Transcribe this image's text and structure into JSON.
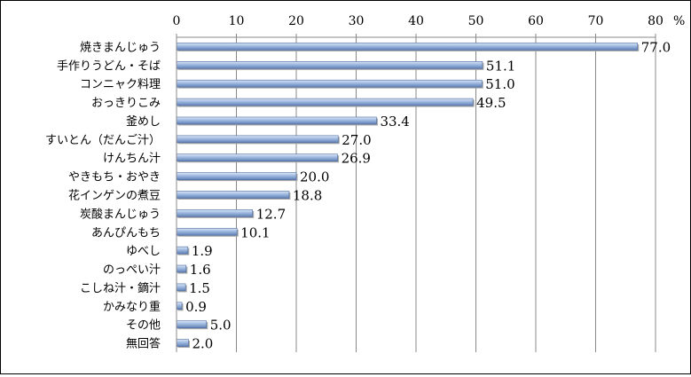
{
  "chart_data": {
    "type": "bar",
    "orientation": "horizontal",
    "title": "",
    "xlabel": "",
    "ylabel": "",
    "unit": "%",
    "xlim": [
      0,
      80
    ],
    "ticks": [
      0,
      10,
      20,
      30,
      40,
      50,
      60,
      70,
      80
    ],
    "tick_labels": [
      "0",
      "10",
      "20",
      "30",
      "40",
      "50",
      "60",
      "70",
      "80"
    ],
    "axis_position": "top",
    "grid": "vertical",
    "legend": "none",
    "bar_color": "#8eaadb",
    "categories": [
      "焼きまんじゅう",
      "手作りうどん・そば",
      "コンニャク料理",
      "おっきりこみ",
      "釜めし",
      "すいとん（だんご汁）",
      "けんちん汁",
      "やきもち・おやき",
      "花インゲンの煮豆",
      "炭酸まんじゅう",
      "あんぴんもち",
      "ゆべし",
      "のっぺい汁",
      "こしね汁・鏑汁",
      "かみなり重",
      "その他",
      "無回答"
    ],
    "values": [
      77.0,
      51.1,
      51.0,
      49.5,
      33.4,
      27.0,
      26.9,
      20.0,
      18.8,
      12.7,
      10.1,
      1.9,
      1.6,
      1.5,
      0.9,
      5.0,
      2.0
    ],
    "value_labels": [
      "77.0",
      "51.1",
      "51.0",
      "49.5",
      "33.4",
      "27.0",
      "26.9",
      "20.0",
      "18.8",
      "12.7",
      "10.1",
      "1.9",
      "1.6",
      "1.5",
      "0.9",
      "5.0",
      "2.0"
    ]
  }
}
